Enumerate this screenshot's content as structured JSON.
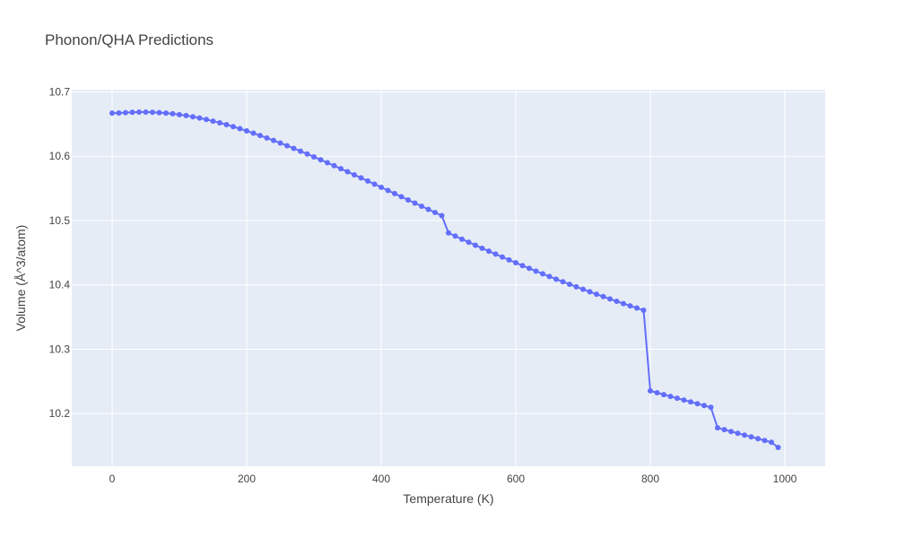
{
  "chart_data": {
    "type": "scatter",
    "mode": "lines+markers",
    "title": "Phonon/QHA Predictions",
    "xlabel": "Temperature (K)",
    "ylabel": "Volume (Å^3/atom)",
    "xlim": [
      -60,
      1060
    ],
    "ylim": [
      10.118,
      10.7035
    ],
    "xticks": [
      0,
      200,
      400,
      600,
      800,
      1000
    ],
    "yticks": [
      10.2,
      10.3,
      10.4,
      10.5,
      10.6,
      10.7
    ],
    "grid": true,
    "colors": {
      "plot_bg": "#E5ECF6",
      "grid": "#ffffff",
      "series": "#636EFA"
    },
    "series": [
      {
        "x": [
          0,
          10,
          20,
          30,
          40,
          50,
          60,
          70,
          80,
          90,
          100,
          110,
          120,
          130,
          140,
          150,
          160,
          170,
          180,
          190,
          200,
          210,
          220,
          230,
          240,
          250,
          260,
          270,
          280,
          290,
          300,
          310,
          320,
          330,
          340,
          350,
          360,
          370,
          380,
          390,
          400,
          410,
          420,
          430,
          440,
          450,
          460,
          470,
          480,
          490,
          500,
          510,
          520,
          530,
          540,
          550,
          560,
          570,
          580,
          590,
          600,
          610,
          620,
          630,
          640,
          650,
          660,
          670,
          680,
          690,
          700,
          710,
          720,
          730,
          740,
          750,
          760,
          770,
          780,
          790,
          800,
          810,
          820,
          830,
          840,
          850,
          860,
          870,
          880,
          890,
          900,
          910,
          920,
          930,
          940,
          950,
          960,
          970,
          980,
          990
        ],
        "y": [
          10.667,
          10.6672,
          10.6678,
          10.6683,
          10.6686,
          10.6686,
          10.6683,
          10.6678,
          10.667,
          10.666,
          10.6647,
          10.6632,
          10.6614,
          10.6594,
          10.6571,
          10.6546,
          10.652,
          10.6491,
          10.646,
          10.6428,
          10.6394,
          10.6359,
          10.6322,
          10.6284,
          10.6245,
          10.6205,
          10.6164,
          10.6122,
          10.6079,
          10.6035,
          10.599,
          10.5945,
          10.5899,
          10.5853,
          10.5806,
          10.5759,
          10.5711,
          10.5663,
          10.5614,
          10.5566,
          10.5517,
          10.5468,
          10.5419,
          10.537,
          10.5321,
          10.5272,
          10.5223,
          10.5174,
          10.5126,
          10.5077,
          10.4808,
          10.4759,
          10.4711,
          10.4664,
          10.4617,
          10.457,
          10.4524,
          10.4478,
          10.4433,
          10.4388,
          10.4344,
          10.43,
          10.4257,
          10.4214,
          10.4172,
          10.413,
          10.4089,
          10.4049,
          10.4009,
          10.397,
          10.3931,
          10.3893,
          10.3855,
          10.3818,
          10.3781,
          10.3745,
          10.3709,
          10.3674,
          10.364,
          10.3606,
          10.2352,
          10.2323,
          10.2294,
          10.2266,
          10.2237,
          10.2209,
          10.2181,
          10.2152,
          10.2124,
          10.2096,
          10.1777,
          10.1749,
          10.1721,
          10.1693,
          10.1665,
          10.1637,
          10.1609,
          10.1581,
          10.1553,
          10.1473
        ]
      }
    ]
  }
}
